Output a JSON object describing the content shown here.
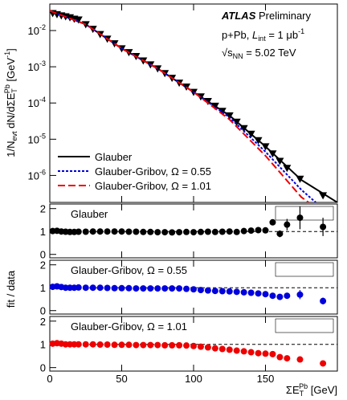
{
  "chart_data": [
    {
      "type": "line",
      "ylog": true,
      "legend": "lower left",
      "y_label": [
        "1/N",
        "evt",
        " dN/dΣE",
        "T",
        "Pb",
        " [GeV",
        "-1",
        "]"
      ],
      "annotations": [
        [
          "ATLAS",
          " Preliminary"
        ],
        [
          "p+Pb, ",
          "L",
          "int",
          " = 1 μb",
          "-1"
        ],
        [
          "√s",
          "NN",
          " = 5.02 TeV"
        ]
      ],
      "xlim": [
        0,
        200
      ],
      "xticks": [
        0,
        50,
        100,
        150
      ],
      "ylim": [
        1.8e-07,
        0.054
      ],
      "yticks": [
        {
          "value": 1e-06,
          "label": "10^-6"
        },
        {
          "value": 1e-05,
          "label": "10^-5"
        },
        {
          "value": 0.0001,
          "label": "10^-4"
        },
        {
          "value": 0.001,
          "label": "10^-3"
        },
        {
          "value": 0.01,
          "label": "10^-2"
        }
      ],
      "series": [
        {
          "color": "#000000",
          "marker": "triangle-down",
          "x": [
            2,
            5,
            8,
            11,
            14,
            17,
            20,
            25,
            30,
            35,
            40,
            45,
            50,
            55,
            60,
            65,
            70,
            75,
            80,
            85,
            90,
            95,
            100,
            105,
            110,
            115,
            120,
            125,
            130,
            135,
            140,
            145,
            150,
            155,
            160,
            165,
            174,
            190
          ],
          "values": [
            0.03,
            0.028,
            0.026,
            0.0245,
            0.023,
            0.021,
            0.02,
            0.0148,
            0.011,
            0.0079,
            0.0059,
            0.0044,
            0.0032,
            0.0025,
            0.00195,
            0.00148,
            0.00115,
            0.00089,
            0.00066,
            0.00049,
            0.00036,
            0.00028,
            0.0002,
            0.00015,
            0.000112,
            8.3e-05,
            6e-05,
            4.5e-05,
            3e-05,
            2e-05,
            1.4e-05,
            9.3e-06,
            6.3e-06,
            4e-06,
            2.5e-06,
            1.6e-06,
            8e-07,
            2.8e-07
          ]
        },
        {
          "name": "Glauber",
          "color": "#000000",
          "dash": "solid",
          "x": [
            0,
            25,
            50,
            75,
            100,
            125,
            150,
            175,
            200
          ],
          "values": [
            0.035,
            0.0148,
            0.0032,
            0.00089,
            0.0002,
            4.5e-05,
            6.3e-06,
            7.5e-07,
            1.8e-07
          ]
        },
        {
          "name": "Glauber-Gribov, Ω = 0.55",
          "color": "#0000dd",
          "dash": "dotted",
          "x": [
            0,
            25,
            50,
            75,
            100,
            125,
            150,
            175,
            185
          ],
          "values": [
            0.035,
            0.0148,
            0.0032,
            0.00089,
            0.0002,
            4e-05,
            4.5e-06,
            4e-07,
            1.8e-07
          ]
        },
        {
          "name": "Glauber-Gribov, Ω = 1.01",
          "color": "#ee0000",
          "dash": "dashed",
          "x": [
            0,
            25,
            50,
            75,
            100,
            125,
            150,
            175,
            180
          ],
          "values": [
            0.035,
            0.0148,
            0.0032,
            0.00089,
            0.0002,
            3.5e-05,
            3.5e-06,
            2.5e-07,
            1.8e-07
          ]
        }
      ]
    },
    {
      "type": "scatter",
      "xlim": [
        0,
        200
      ],
      "xticks": [
        0,
        50,
        100,
        150
      ],
      "ylim": [
        -0.15,
        2.2
      ],
      "yticks": [
        0,
        1,
        2
      ],
      "hline": 1,
      "x": [
        2,
        5,
        8,
        11,
        14,
        17,
        20,
        25,
        30,
        35,
        40,
        45,
        50,
        55,
        60,
        65,
        70,
        75,
        80,
        85,
        90,
        95,
        100,
        105,
        110,
        115,
        120,
        125,
        130,
        135,
        140,
        145,
        150,
        155,
        160,
        165,
        174,
        190
      ],
      "series": [
        {
          "name": "Glauber",
          "color": "#000000",
          "values": [
            1.02,
            1.03,
            1.0,
            0.99,
            0.98,
            0.98,
            0.99,
            0.99,
            1.0,
            1.0,
            1.0,
            1.0,
            1.0,
            0.99,
            0.99,
            0.98,
            0.98,
            0.97,
            0.97,
            0.96,
            0.97,
            0.98,
            0.97,
            0.98,
            0.99,
            0.98,
            0.99,
            1.0,
            0.98,
            1.02,
            1.04,
            1.06,
            1.05,
            1.4,
            0.9,
            1.3,
            1.6,
            1.2
          ],
          "errors": [
            0.03,
            0.03,
            0.03,
            0.03,
            0.03,
            0.03,
            0.03,
            0.03,
            0.03,
            0.03,
            0.03,
            0.03,
            0.03,
            0.03,
            0.03,
            0.03,
            0.03,
            0.03,
            0.03,
            0.03,
            0.03,
            0.03,
            0.03,
            0.03,
            0.03,
            0.03,
            0.03,
            0.03,
            0.03,
            0.03,
            0.03,
            0.03,
            0.05,
            0.1,
            0.15,
            0.25,
            0.5,
            0.4
          ]
        }
      ]
    },
    {
      "type": "scatter",
      "xlim": [
        0,
        200
      ],
      "xticks": [
        0,
        50,
        100,
        150
      ],
      "ylim": [
        -0.15,
        2.2
      ],
      "yticks": [
        0,
        1,
        2
      ],
      "hline": 1,
      "x": [
        2,
        5,
        8,
        11,
        14,
        17,
        20,
        25,
        30,
        35,
        40,
        45,
        50,
        55,
        60,
        65,
        70,
        75,
        80,
        85,
        90,
        95,
        100,
        105,
        110,
        115,
        120,
        125,
        130,
        135,
        140,
        145,
        150,
        155,
        160,
        165,
        174,
        190
      ],
      "series": [
        {
          "name": "Glauber-Gribov, Ω = 0.55",
          "color": "#0000dd",
          "values": [
            1.04,
            1.06,
            1.03,
            1.0,
            1.0,
            1.0,
            1.01,
            1.0,
            1.0,
            1.0,
            0.99,
            0.98,
            0.98,
            0.98,
            0.97,
            0.97,
            0.97,
            0.97,
            0.97,
            0.97,
            0.97,
            0.95,
            0.93,
            0.9,
            0.88,
            0.86,
            0.85,
            0.84,
            0.82,
            0.8,
            0.78,
            0.75,
            0.72,
            0.65,
            0.6,
            0.65,
            0.7,
            0.42
          ],
          "errors": [
            0.03,
            0.03,
            0.03,
            0.03,
            0.03,
            0.03,
            0.03,
            0.03,
            0.03,
            0.03,
            0.03,
            0.03,
            0.03,
            0.03,
            0.03,
            0.03,
            0.03,
            0.03,
            0.03,
            0.03,
            0.03,
            0.03,
            0.03,
            0.03,
            0.03,
            0.03,
            0.03,
            0.03,
            0.03,
            0.03,
            0.03,
            0.03,
            0.04,
            0.06,
            0.08,
            0.1,
            0.2,
            0.15
          ]
        }
      ]
    },
    {
      "type": "scatter",
      "xlim": [
        0,
        200
      ],
      "xticks": [
        0,
        50,
        100,
        150
      ],
      "xtick_labels": true,
      "ylim": [
        -0.15,
        2.2
      ],
      "yticks": [
        0,
        1,
        2
      ],
      "hline": 1,
      "y_label": "fit / data",
      "x_label": [
        "ΣE",
        "T",
        "Pb",
        " [GeV]"
      ],
      "x": [
        2,
        5,
        8,
        11,
        14,
        17,
        20,
        25,
        30,
        35,
        40,
        45,
        50,
        55,
        60,
        65,
        70,
        75,
        80,
        85,
        90,
        95,
        100,
        105,
        110,
        115,
        120,
        125,
        130,
        135,
        140,
        145,
        150,
        155,
        160,
        165,
        174,
        190
      ],
      "series": [
        {
          "name": "Glauber-Gribov, Ω = 1.01",
          "color": "#ee0000",
          "values": [
            1.03,
            1.05,
            1.03,
            1.0,
            1.0,
            1.0,
            1.0,
            1.0,
            1.0,
            0.99,
            0.99,
            0.98,
            0.98,
            0.98,
            0.97,
            0.97,
            0.97,
            0.97,
            0.96,
            0.96,
            0.96,
            0.95,
            0.93,
            0.9,
            0.87,
            0.83,
            0.8,
            0.77,
            0.73,
            0.7,
            0.66,
            0.62,
            0.6,
            0.58,
            0.45,
            0.4,
            0.35,
            0.18
          ],
          "errors": [
            0.03,
            0.03,
            0.03,
            0.03,
            0.03,
            0.03,
            0.03,
            0.03,
            0.03,
            0.03,
            0.03,
            0.03,
            0.03,
            0.03,
            0.03,
            0.03,
            0.03,
            0.03,
            0.03,
            0.03,
            0.03,
            0.03,
            0.03,
            0.03,
            0.03,
            0.03,
            0.03,
            0.03,
            0.03,
            0.03,
            0.03,
            0.03,
            0.04,
            0.05,
            0.06,
            0.08,
            0.1,
            0.08
          ]
        }
      ]
    }
  ]
}
